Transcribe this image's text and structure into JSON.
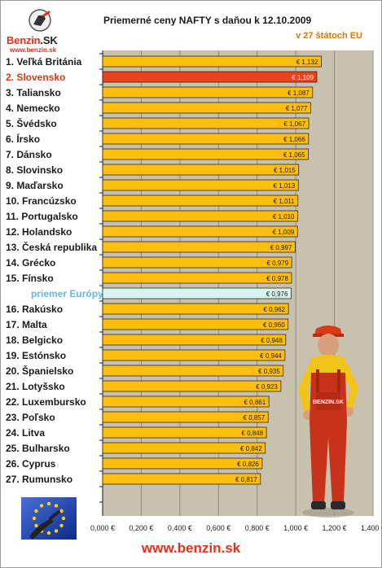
{
  "header": {
    "brand_name": "Benzin",
    "brand_suffix": "SK",
    "brand_url": "www.benzin.sk",
    "title": "Priemerné ceny NAFTY s daňou k 12.10.2009",
    "subtitle": "v 27 štátoch EU"
  },
  "footer": {
    "url": "www.benzin.sk"
  },
  "mascot": {
    "badge": "BENZIN.SK"
  },
  "colors": {
    "bar": "#ffbe0d",
    "highlight": "#e8431a",
    "average": "#d8f4ee",
    "plot_bg": "#c7c1ae",
    "accent": "#e8301a"
  },
  "chart_data": {
    "type": "bar",
    "orientation": "horizontal",
    "title": "Priemerné ceny NAFTY s daňou k 12.10.2009",
    "subtitle": "v 27 štátoch EU",
    "xlim": [
      0,
      1.4
    ],
    "xticks": [
      0,
      0.2,
      0.4,
      0.6,
      0.8,
      1.0,
      1.2,
      1.4
    ],
    "xtick_labels": [
      "0,000 €",
      "0,200 €",
      "0,400 €",
      "0,600 €",
      "0,800 €",
      "1,000 €",
      "1,200 €",
      "1,400 €"
    ],
    "grid": "vertical",
    "categories": [
      "1. Veľká Británia",
      "2. Slovensko",
      "3. Taliansko",
      "4. Nemecko",
      "5. Švédsko",
      "6. Írsko",
      "7. Dánsko",
      "8. Slovinsko",
      "9. Maďarsko",
      "10. Francúzsko",
      "11. Portugalsko",
      "12. Holandsko",
      "13. Česká republika",
      "14. Grécko",
      "15. Fínsko",
      "priemer Európy",
      "16. Rakúsko",
      "17. Malta",
      "18. Belgicko",
      "19. Estónsko",
      "20. Španielsko",
      "21. Lotyšsko",
      "22. Luxembursko",
      "23. Poľsko",
      "24. Litva",
      "25. Bulharsko",
      "26. Cyprus",
      "27. Rumunsko"
    ],
    "values": [
      1.132,
      1.109,
      1.087,
      1.077,
      1.067,
      1.066,
      1.065,
      1.015,
      1.013,
      1.011,
      1.01,
      1.009,
      0.997,
      0.979,
      0.978,
      0.976,
      0.962,
      0.96,
      0.948,
      0.944,
      0.935,
      0.923,
      0.861,
      0.857,
      0.848,
      0.842,
      0.826,
      0.817
    ],
    "value_labels": [
      "€ 1,132",
      "€ 1,109",
      "€ 1,087",
      "€ 1,077",
      "€ 1,067",
      "€ 1,066",
      "€ 1,065",
      "€ 1,015",
      "€ 1,013",
      "€ 1,011",
      "€ 1,010",
      "€ 1,009",
      "€ 0,997",
      "€ 0,979",
      "€ 0,978",
      "€ 0,976",
      "€ 0,962",
      "€ 0,960",
      "€ 0,948",
      "€ 0,944",
      "€ 0,935",
      "€ 0,923",
      "€ 0,861",
      "€ 0,857",
      "€ 0,848",
      "€ 0,842",
      "€ 0,826",
      "€ 0,817"
    ],
    "highlight_index": 1,
    "average_index": 15
  }
}
